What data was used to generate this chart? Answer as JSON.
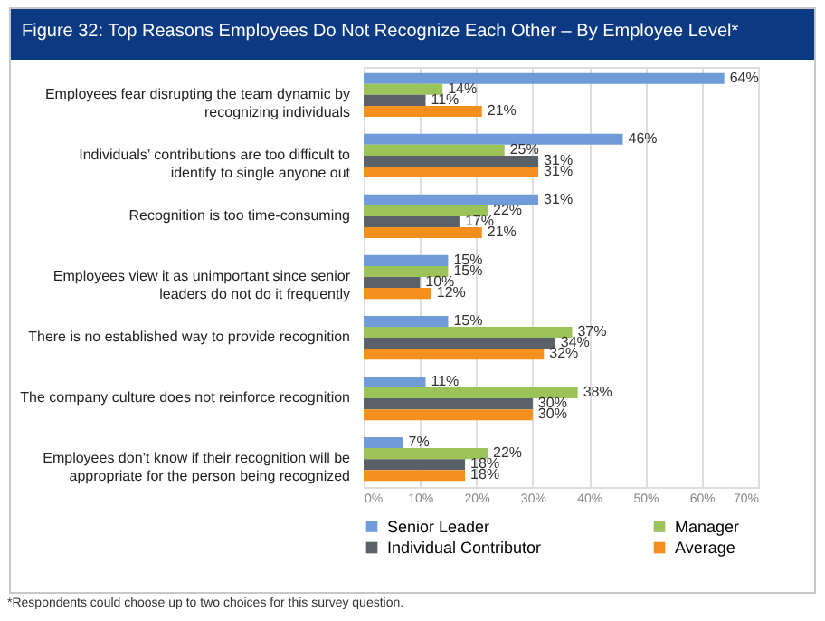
{
  "chart_data": {
    "type": "bar",
    "orientation": "horizontal",
    "title": "Figure 32: Top Reasons Employees Do Not Recognize Each Other – By Employee Level*",
    "categories": [
      "Employees fear disrupting the team dynamic by recognizing individuals",
      "Individuals’ contributions are too difficult to identify to single anyone out",
      "Recognition is too time-consuming",
      "Employees view it as unimportant since senior leaders do not do it frequently",
      "There is no established way to provide recognition",
      "The company culture does not reinforce recognition",
      "Employees don’t know if their recognition will be appropriate for the person being recognized"
    ],
    "series": [
      {
        "name": "Senior Leader",
        "color": "#6f9bd8",
        "values": [
          64,
          46,
          31,
          15,
          15,
          11,
          7
        ],
        "value_labels": [
          "64%",
          "46%",
          "31%",
          "15%",
          "15%",
          "11%",
          "7%"
        ]
      },
      {
        "name": "Manager",
        "color": "#9bc35a",
        "values": [
          14,
          25,
          22,
          15,
          37,
          38,
          22
        ],
        "value_labels": [
          "14%",
          "25%",
          "22%",
          "15%",
          "37%",
          "38%",
          "22%"
        ]
      },
      {
        "name": "Individual Contributor",
        "color": "#5b6168",
        "values": [
          11,
          31,
          17,
          10,
          34,
          30,
          18
        ],
        "value_labels": [
          "11%",
          "31%",
          "17%",
          "10%",
          "34%",
          "30%",
          "18%"
        ]
      },
      {
        "name": "Average",
        "color": "#f5901f",
        "values": [
          21,
          31,
          21,
          12,
          32,
          30,
          18
        ],
        "value_labels": [
          "21%",
          "31%",
          "21%",
          "12%",
          "32%",
          "30%",
          "18%"
        ]
      }
    ],
    "xlim": [
      0,
      70
    ],
    "xticks": [
      {
        "value": 0,
        "label": "0%"
      },
      {
        "value": 10,
        "label": "10%"
      },
      {
        "value": 20,
        "label": "20%"
      },
      {
        "value": 30,
        "label": "30%"
      },
      {
        "value": 40,
        "label": "40%"
      },
      {
        "value": 50,
        "label": "50%"
      },
      {
        "value": 60,
        "label": "60%"
      },
      {
        "value": 70,
        "label": "70%"
      }
    ],
    "grid": "x",
    "legend": "bottom",
    "annotations": [
      "*Respondents could choose up to two choices for this survey question."
    ]
  }
}
